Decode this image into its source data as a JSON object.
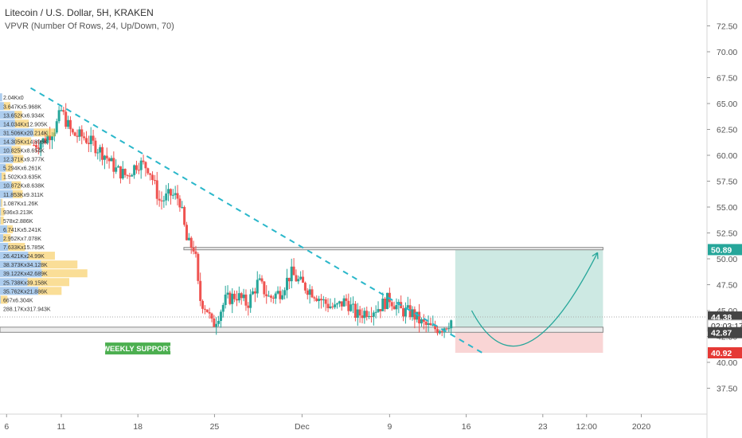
{
  "header": {
    "title": "Litecoin / U.S. Dollar, 5H, KRAKEN",
    "indicator": "VPVR (Number Of Rows, 24, Up/Down, 70)"
  },
  "colors": {
    "up": "#26a69a",
    "down": "#ef5350",
    "trendline": "#2ab7ca",
    "vp_up": "#4a90d9",
    "vp_down": "#f5c242",
    "target_zone": "#cde9e3",
    "stop_zone": "#f9d5d5",
    "support_label_bg": "#4caf50",
    "price_last": "#444444",
    "price_target": "#26a69a",
    "price_stop": "#e53935"
  },
  "chart_data": {
    "type": "candlestick",
    "ylim": [
      35.0,
      75.0
    ],
    "y_ticks": [
      "72.50",
      "70.00",
      "67.50",
      "65.00",
      "62.50",
      "60.00",
      "57.50",
      "55.00",
      "52.50",
      "50.00",
      "47.50",
      "45.00",
      "42.50",
      "40.00",
      "37.50"
    ],
    "x_ticks": [
      {
        "label": "6",
        "day": 6
      },
      {
        "label": "11",
        "day": 11
      },
      {
        "label": "18",
        "day": 18
      },
      {
        "label": "25",
        "day": 25
      },
      {
        "label": "Dec",
        "day": 33
      },
      {
        "label": "9",
        "day": 41
      },
      {
        "label": "16",
        "day": 48
      },
      {
        "label": "23",
        "day": 55
      },
      {
        "label": "12:00",
        "day": 59
      },
      {
        "label": "2020",
        "day": 64
      }
    ],
    "x_range_days": [
      5.4,
      70
    ],
    "price_path": [
      [
        8.5,
        61.0
      ],
      [
        9.5,
        61.5
      ],
      [
        10.5,
        62.8
      ],
      [
        11.0,
        64.3
      ],
      [
        12.0,
        62.0
      ],
      [
        13.0,
        61.8
      ],
      [
        14.0,
        61.0
      ],
      [
        15.0,
        60.0
      ],
      [
        16.0,
        58.6
      ],
      [
        17.0,
        58.0
      ],
      [
        18.0,
        59.3
      ],
      [
        19.0,
        58.8
      ],
      [
        20.0,
        55.5
      ],
      [
        21.0,
        56.2
      ],
      [
        21.8,
        55.8
      ],
      [
        22.5,
        51.5
      ],
      [
        23.2,
        51.0
      ],
      [
        23.6,
        46.2
      ],
      [
        24.3,
        45.2
      ],
      [
        24.8,
        43.5
      ],
      [
        25.3,
        44.5
      ],
      [
        26.0,
        46.0
      ],
      [
        27.0,
        46.5
      ],
      [
        28.0,
        45.6
      ],
      [
        29.0,
        47.8
      ],
      [
        30.0,
        46.2
      ],
      [
        31.0,
        46.8
      ],
      [
        32.0,
        48.6
      ],
      [
        33.0,
        47.5
      ],
      [
        34.0,
        46.8
      ],
      [
        35.0,
        45.8
      ],
      [
        36.0,
        45.2
      ],
      [
        37.0,
        46.0
      ],
      [
        38.0,
        44.5
      ],
      [
        39.0,
        45.0
      ],
      [
        40.0,
        45.3
      ],
      [
        41.0,
        46.2
      ],
      [
        42.0,
        45.0
      ],
      [
        43.0,
        44.8
      ],
      [
        44.0,
        43.7
      ],
      [
        45.0,
        43.2
      ],
      [
        46.0,
        43.5
      ],
      [
        46.8,
        44.2
      ]
    ],
    "trendline": {
      "start": [
        8.2,
        66.5
      ],
      "end": [
        49.5,
        40.9
      ]
    },
    "support_zone": {
      "high": 43.4,
      "low": 42.9
    },
    "resistance_zone": {
      "high": 51.1,
      "low": 50.9
    },
    "target_box": {
      "x_start": 47.0,
      "x_end": 60.5,
      "top": 50.89,
      "bottom": 42.87
    },
    "stop_box": {
      "x_start": 47.0,
      "x_end": 60.5,
      "top": 42.87,
      "bottom": 40.92
    },
    "projection_curve": {
      "start": [
        48.5,
        45.0
      ],
      "control": [
        53.0,
        36.0
      ],
      "end": [
        60.0,
        50.6
      ]
    },
    "last_price_line": 44.38,
    "price_labels": [
      {
        "value": 50.89,
        "text": "50.89",
        "role": "target"
      },
      {
        "value": 44.38,
        "text": "44.38",
        "role": "last"
      },
      {
        "value": 43.55,
        "text": "02:03:17",
        "role": "countdown"
      },
      {
        "value": 42.87,
        "text": "42.87",
        "role": "support"
      },
      {
        "value": 40.92,
        "text": "40.92",
        "role": "stop"
      }
    ],
    "annotation": {
      "text": "WEEKLY SUPPORT",
      "day": 18.5,
      "price": 41.3
    },
    "volume_profile": [
      {
        "price": 65.6,
        "label": "2.04Kx0",
        "up": 2.04,
        "down": 0
      },
      {
        "price": 64.75,
        "label": "3.647Kx5.968K",
        "up": 3.647,
        "down": 5.968
      },
      {
        "price": 63.9,
        "label": "13.652Kx6.934K",
        "up": 13.652,
        "down": 6.934
      },
      {
        "price": 63.05,
        "label": "14.034Kx12.905K",
        "up": 14.034,
        "down": 12.905
      },
      {
        "price": 62.2,
        "label": "31.506Kx20.214K",
        "up": 31.506,
        "down": 20.214
      },
      {
        "price": 61.35,
        "label": "14.305Kx14.896K",
        "up": 14.305,
        "down": 14.896
      },
      {
        "price": 60.5,
        "label": "10.825Kx8.654K",
        "up": 10.825,
        "down": 8.654
      },
      {
        "price": 59.65,
        "label": "12.371Kx9.377K",
        "up": 12.371,
        "down": 9.377
      },
      {
        "price": 58.8,
        "label": "5.294Kx6.261K",
        "up": 5.294,
        "down": 6.261
      },
      {
        "price": 57.95,
        "label": "1.502Kx3.635K",
        "up": 1.502,
        "down": 3.635
      },
      {
        "price": 57.1,
        "label": "10.872Kx8.638K",
        "up": 10.872,
        "down": 8.638
      },
      {
        "price": 56.25,
        "label": "11.853Kx9.311K",
        "up": 11.853,
        "down": 9.311
      },
      {
        "price": 55.4,
        "label": "1.087Kx1.26K",
        "up": 1.087,
        "down": 1.26
      },
      {
        "price": 54.55,
        "label": "936x3.213K",
        "up": 0.936,
        "down": 3.213
      },
      {
        "price": 53.7,
        "label": "578x2.886K",
        "up": 0.578,
        "down": 2.886
      },
      {
        "price": 52.85,
        "label": "6.741Kx5.241K",
        "up": 6.741,
        "down": 5.241
      },
      {
        "price": 52.0,
        "label": "2.952Kx7.078K",
        "up": 2.952,
        "down": 7.078
      },
      {
        "price": 51.15,
        "label": "7.633Kx15.785K",
        "up": 7.633,
        "down": 15.785
      },
      {
        "price": 50.3,
        "label": "26.421Kx24.99K",
        "up": 26.421,
        "down": 24.99
      },
      {
        "price": 49.45,
        "label": "38.373Kx34.128K",
        "up": 38.373,
        "down": 34.128
      },
      {
        "price": 48.6,
        "label": "39.122Kx42.689K",
        "up": 39.122,
        "down": 42.689
      },
      {
        "price": 47.75,
        "label": "25.738Kx39.158K",
        "up": 25.738,
        "down": 39.158
      },
      {
        "price": 46.9,
        "label": "35.762Kx21.886K",
        "up": 35.762,
        "down": 21.886
      },
      {
        "price": 46.05,
        "label": "667x6.304K",
        "up": 0.667,
        "down": 6.304
      },
      {
        "price": 45.2,
        "label": "288.17Kx317.943K",
        "up": 0,
        "down": 0
      }
    ]
  }
}
